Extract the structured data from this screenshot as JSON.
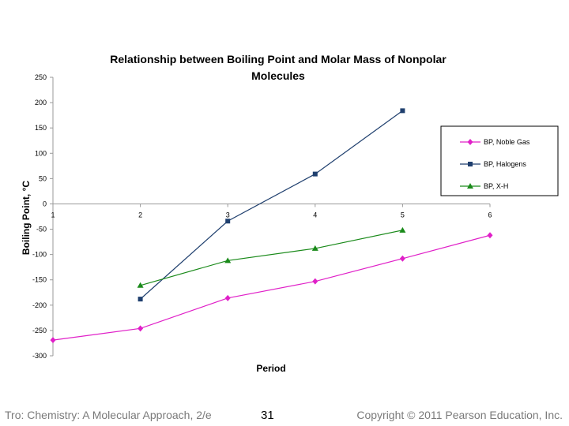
{
  "chart_data": {
    "type": "line",
    "title_lines": [
      "Relationship between Boiling Point and Molar Mass of Nonpolar",
      "Molecules"
    ],
    "xlabel": "Period",
    "ylabel": "Boiling Point, °C",
    "x_ticks": [
      1,
      2,
      3,
      4,
      5,
      6
    ],
    "xlim": [
      1,
      6
    ],
    "ylim": [
      -300,
      250
    ],
    "y_ticks": [
      250,
      200,
      150,
      100,
      50,
      0,
      -50,
      -100,
      -150,
      -200,
      -250,
      -300
    ],
    "legend_position": "right",
    "grid": false,
    "series": [
      {
        "name": "BP, Noble Gas",
        "color": "#e020c8",
        "marker": "diamond",
        "x": [
          1,
          2,
          3,
          4,
          5,
          6
        ],
        "y": [
          -269,
          -246,
          -186,
          -153,
          -108,
          -62
        ]
      },
      {
        "name": "BP, Halogens",
        "color": "#1f3f6e",
        "marker": "square",
        "x": [
          2,
          3,
          4,
          5
        ],
        "y": [
          -188,
          -34,
          59,
          184
        ]
      },
      {
        "name": "BP, X-H",
        "color": "#1a8a1a",
        "marker": "triangle",
        "x": [
          2,
          3,
          4,
          5
        ],
        "y": [
          -161,
          -112,
          -88,
          -52
        ]
      }
    ]
  },
  "footer": {
    "left": "Tro: Chemistry: A Molecular Approach, 2/e",
    "center": "31",
    "right": "Copyright © 2011 Pearson Education, Inc."
  }
}
